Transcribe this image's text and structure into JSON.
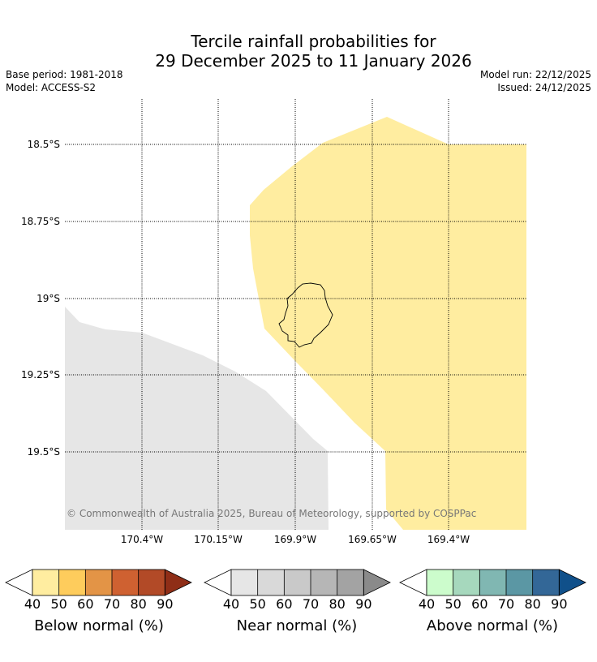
{
  "title": {
    "line1": "Tercile rainfall probabilities for",
    "line2": "29 December 2025 to 11 January 2026"
  },
  "meta": {
    "base_period": "Base period: 1981-2018",
    "model": "Model: ACCESS-S2",
    "model_run": "Model run: 22/12/2025",
    "issued": "Issued: 24/12/2025"
  },
  "map": {
    "lat_labels": [
      "18.5°S",
      "18.75°S",
      "19°S",
      "19.25°S",
      "19.5°S"
    ],
    "lon_labels": [
      "170.4°W",
      "170.15°W",
      "169.9°W",
      "169.65°W",
      "169.4°W"
    ],
    "copyright": "© Commonwealth of Australia 2025, Bureau of Meteorology, supported by COSPPac",
    "regions": [
      {
        "name": "below-normal-region",
        "category": "Below normal",
        "band": "40-50",
        "color": "#ffeda0"
      },
      {
        "name": "near-normal-region",
        "category": "Near normal",
        "band": "40-50",
        "color": "#e6e6e6"
      }
    ]
  },
  "colorbars": [
    {
      "label": "Below normal (%)",
      "ticks": [
        "40",
        "50",
        "60",
        "70",
        "80",
        "90"
      ],
      "colors": [
        "#ffeda0",
        "#fecc5c",
        "#e39446",
        "#cf6131",
        "#b24a27",
        "#8f2e17"
      ]
    },
    {
      "label": "Near normal (%)",
      "ticks": [
        "40",
        "50",
        "60",
        "70",
        "80",
        "90"
      ],
      "colors": [
        "#e6e6e6",
        "#d9d9d9",
        "#c9c9c9",
        "#b6b6b6",
        "#a3a3a3",
        "#8a8a8a"
      ]
    },
    {
      "label": "Above normal (%)",
      "ticks": [
        "40",
        "50",
        "60",
        "70",
        "80",
        "90"
      ],
      "colors": [
        "#ccfccc",
        "#a6d8bd",
        "#80b7b2",
        "#5b97a4",
        "#336797",
        "#10508a"
      ]
    }
  ]
}
